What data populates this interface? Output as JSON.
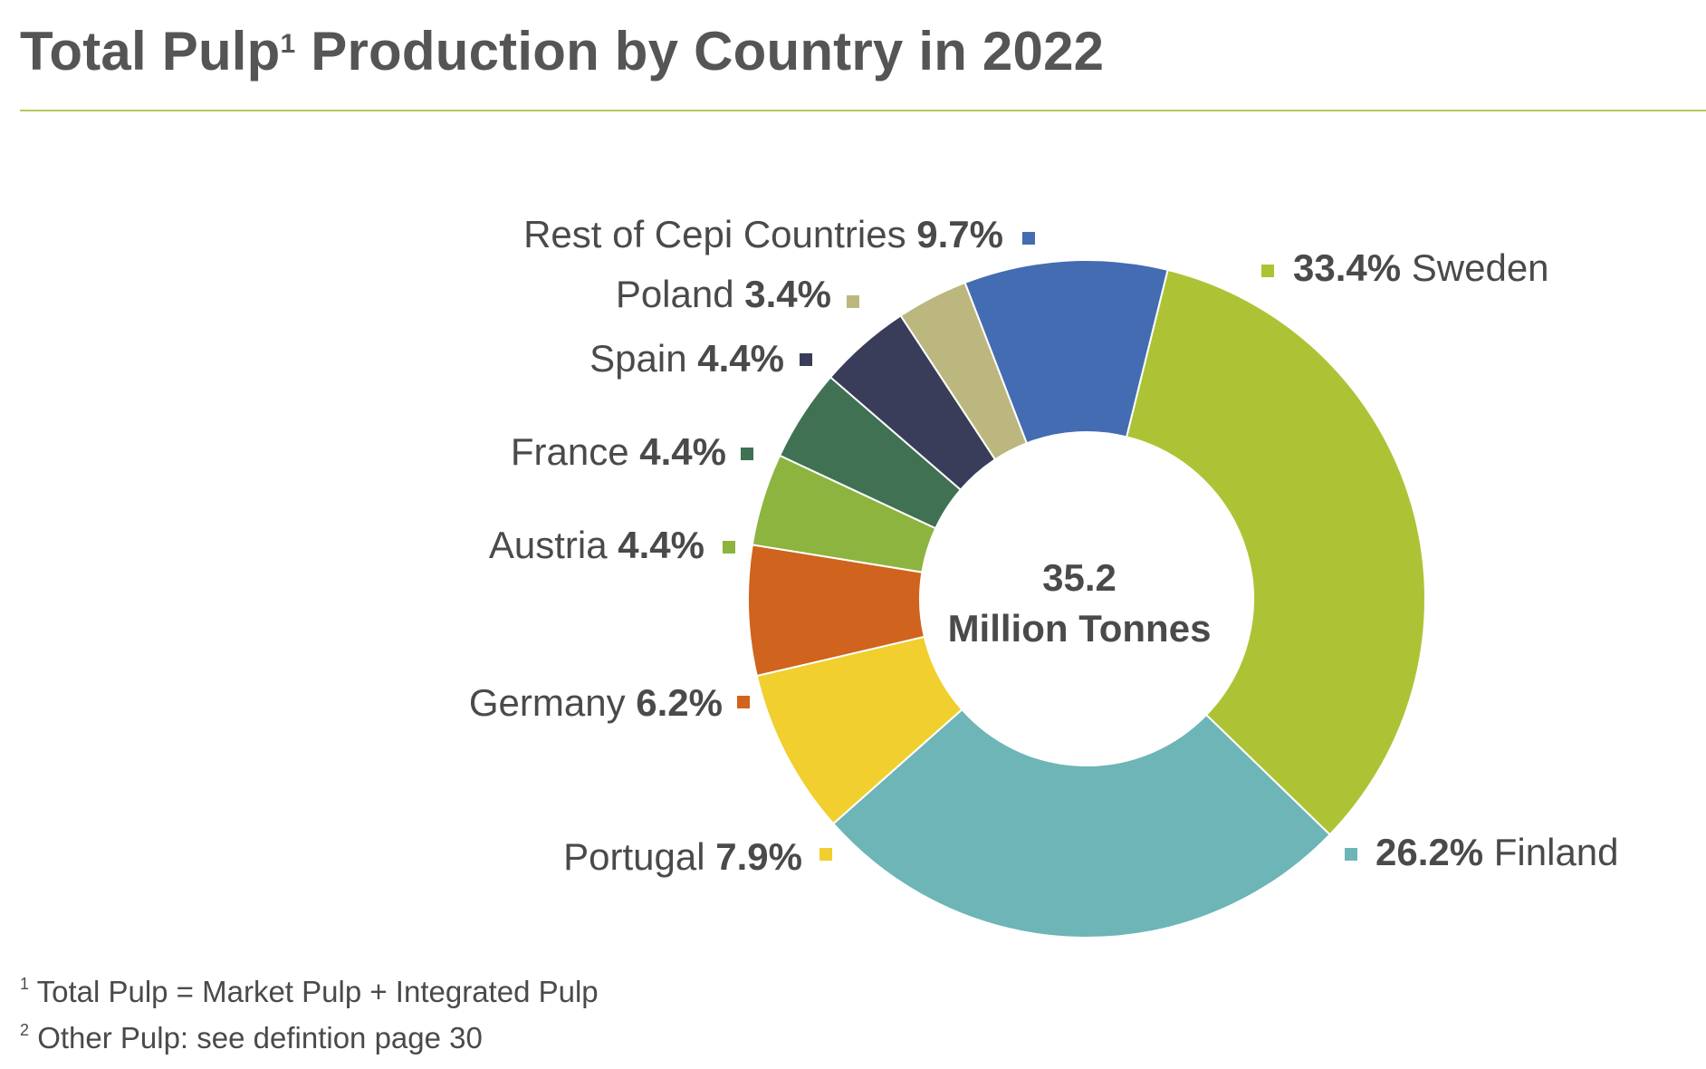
{
  "title": {
    "text": "Total Pulp",
    "sup": "1",
    "rest": " Production by Country in 2022"
  },
  "center": {
    "value": "35.2",
    "unit": "Million Tonnes"
  },
  "footnotes": [
    {
      "mark": "1",
      "text": "Total Pulp = Market Pulp + Integrated Pulp"
    },
    {
      "mark": "2",
      "text": "Other Pulp: see defintion page 30"
    }
  ],
  "chart_data": {
    "type": "pie",
    "donut": true,
    "total_label": "35.2 Million Tonnes",
    "slices": [
      {
        "name": "Sweden",
        "label": "33.4%",
        "value": 33.4,
        "color": "#adc335"
      },
      {
        "name": "Finland",
        "label": "26.2%",
        "value": 26.2,
        "color": "#6db5b7"
      },
      {
        "name": "Portugal",
        "label": "7.9%",
        "value": 7.9,
        "color": "#f0cf2e"
      },
      {
        "name": "Germany",
        "label": "6.2%",
        "value": 6.2,
        "color": "#d0631d"
      },
      {
        "name": "Austria",
        "label": "4.4%",
        "value": 4.4,
        "color": "#8db43e"
      },
      {
        "name": "France",
        "label": "4.4%",
        "value": 4.4,
        "color": "#3f7152"
      },
      {
        "name": "Spain",
        "label": "4.4%",
        "value": 4.4,
        "color": "#393d59"
      },
      {
        "name": "Poland",
        "label": "3.4%",
        "value": 3.4,
        "color": "#bcb77e"
      },
      {
        "name": "Rest of Cepi Countries",
        "label": "9.7%",
        "value": 9.7,
        "color": "#436cb2"
      }
    ]
  }
}
